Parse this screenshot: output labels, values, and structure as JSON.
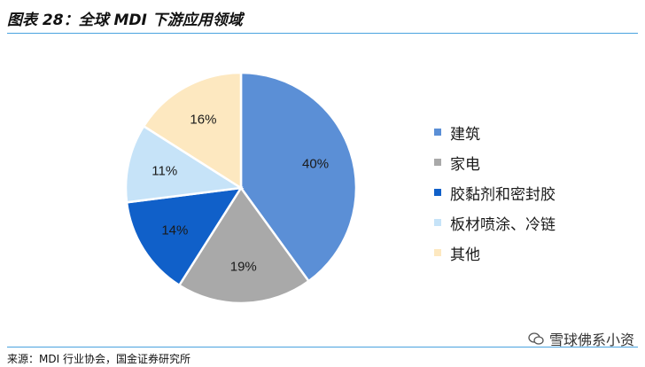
{
  "figure": {
    "title": "图表 28：全球 MDI 下游应用领域",
    "source": "来源：MDI 行业协会，国金证券研究所",
    "watermark": "雪球佛系小资"
  },
  "chart_data": {
    "type": "pie",
    "title": "全球 MDI 下游应用领域",
    "slices": [
      {
        "label": "建筑",
        "value": 40,
        "value_label": "40%",
        "color": "#5b8fd6"
      },
      {
        "label": "家电",
        "value": 19,
        "value_label": "19%",
        "color": "#a9a9a9"
      },
      {
        "label": "胶黏剂和密封胶",
        "value": 14,
        "value_label": "14%",
        "color": "#1060c9"
      },
      {
        "label": "板材喷涂、冷链",
        "value": 11,
        "value_label": "11%",
        "color": "#c6e3f8"
      },
      {
        "label": "其他",
        "value": 16,
        "value_label": "16%",
        "color": "#fde8c0"
      }
    ],
    "legend_position": "right"
  }
}
